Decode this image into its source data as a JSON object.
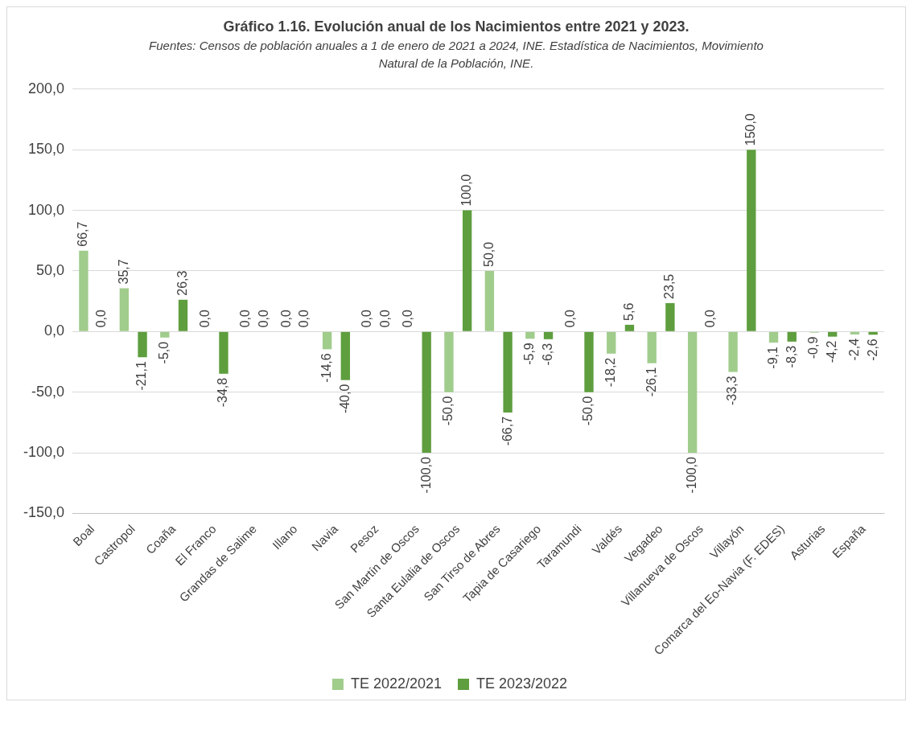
{
  "chart_data": {
    "type": "bar",
    "title": "Gráfico 1.16. Evolución anual de los Nacimientos entre 2021 y 2023.",
    "subtitle": "Fuentes: Censos de población anuales a 1 de enero de 2021 a 2024, INE. Estadística de Nacimientos, Movimiento Natural de la Población, INE.",
    "categories": [
      "Boal",
      "Castropol",
      "Coaña",
      "El Franco",
      "Grandas de Salime",
      "Illano",
      "Navia",
      "Pesoz",
      "San Martín de Oscos",
      "Santa Eulalia de Oscos",
      "San Tirso de Abres",
      "Tapia de Casariego",
      "Taramundi",
      "Valdés",
      "Vegadeo",
      "Villanueva de Oscos",
      "Villayón",
      "Comarca del Eo-Navia (F. EDES)",
      "Asturias",
      "España"
    ],
    "series": [
      {
        "name": "TE 2022/2021",
        "color": "#a0cc8c",
        "values": [
          66.7,
          35.7,
          -5.0,
          0.0,
          0.0,
          0.0,
          -14.6,
          0.0,
          0.0,
          -50.0,
          50.0,
          -5.9,
          0.0,
          -18.2,
          -26.1,
          -100.0,
          -33.3,
          -9.1,
          -0.9,
          -2.4
        ],
        "value_labels": [
          "66,7",
          "35,7",
          "-5,0",
          "0,0",
          "0,0",
          "0,0",
          "-14,6",
          "0,0",
          "0,0",
          "-50,0",
          "50,0",
          "-5,9",
          "0,0",
          "-18,2",
          "-26,1",
          "-100,0",
          "-33,3",
          "-9,1",
          "-0,9",
          "-2,4"
        ]
      },
      {
        "name": "TE 2023/2022",
        "color": "#5e9e3e",
        "values": [
          0.0,
          -21.1,
          26.3,
          -34.8,
          0.0,
          0.0,
          -40.0,
          0.0,
          -100.0,
          100.0,
          -66.7,
          -6.3,
          -50.0,
          5.6,
          23.5,
          0.0,
          150.0,
          -8.3,
          -4.2,
          -2.6
        ],
        "value_labels": [
          "0,0",
          "-21,1",
          "26,3",
          "-34,8",
          "0,0",
          "0,0",
          "-40,0",
          "0,0",
          "-100,0",
          "100,0",
          "-66,7",
          "-6,3",
          "-50,0",
          "5,6",
          "23,5",
          "0,0",
          "150,0",
          "-8,3",
          "-4,2",
          "-2,6"
        ]
      }
    ],
    "ylim": [
      -150,
      200
    ],
    "yticks": [
      {
        "value": -150,
        "label": "-150,0"
      },
      {
        "value": -100,
        "label": "-100,0"
      },
      {
        "value": -50,
        "label": "-50,0"
      },
      {
        "value": 0,
        "label": "0,0"
      },
      {
        "value": 50,
        "label": "50,0"
      },
      {
        "value": 100,
        "label": "100,0"
      },
      {
        "value": 150,
        "label": "150,0"
      },
      {
        "value": 200,
        "label": "200,0"
      }
    ],
    "grid": "y",
    "legend": "bottom"
  }
}
